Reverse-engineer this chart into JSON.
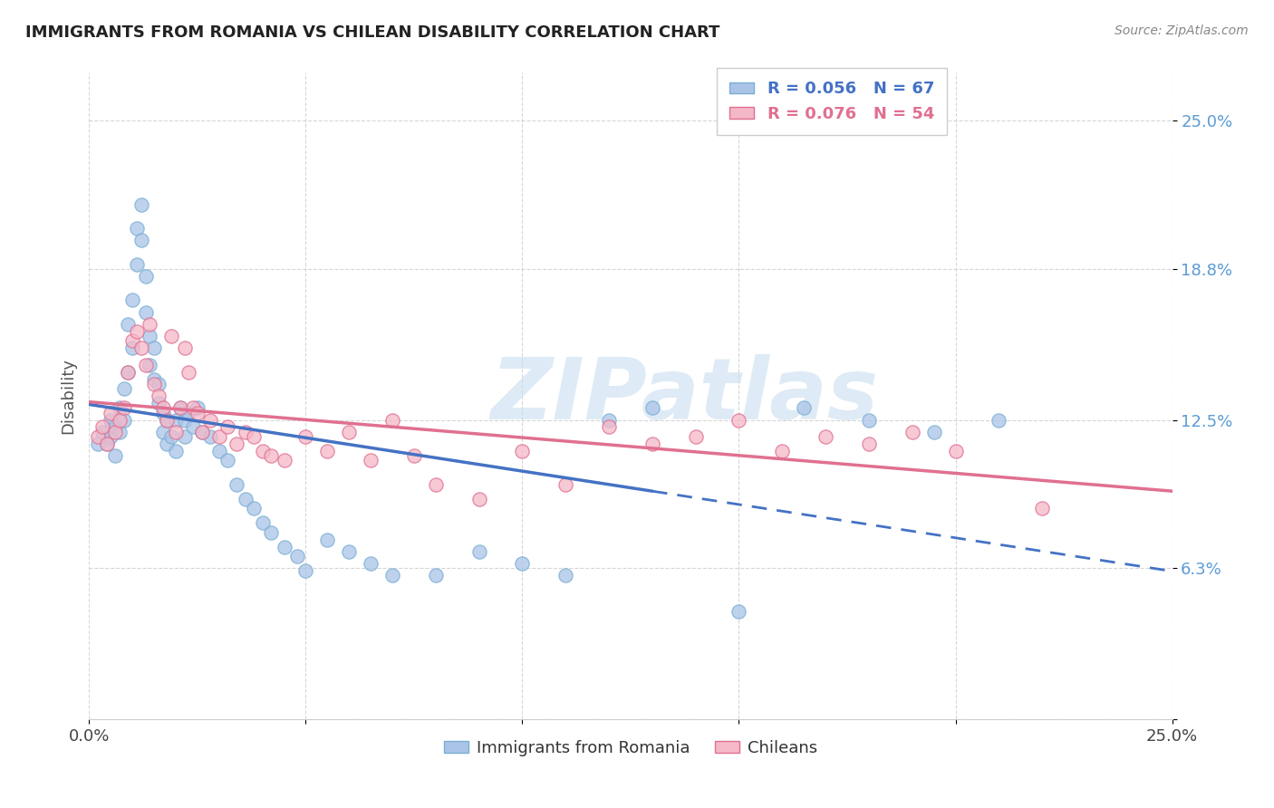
{
  "title": "IMMIGRANTS FROM ROMANIA VS CHILEAN DISABILITY CORRELATION CHART",
  "source": "Source: ZipAtlas.com",
  "ylabel": "Disability",
  "xlim": [
    0.0,
    0.25
  ],
  "ylim": [
    0.0,
    0.27
  ],
  "color_romania_fill": "#aac4e8",
  "color_romania_edge": "#7bafd4",
  "color_chileans_fill": "#f5b8c8",
  "color_chileans_edge": "#e07090",
  "color_romania_line": "#4472C4",
  "color_chileans_line": "#e07090",
  "watermark_color": "#c8dff0",
  "romania_scatter_x": [
    0.002,
    0.003,
    0.004,
    0.005,
    0.005,
    0.006,
    0.006,
    0.007,
    0.007,
    0.008,
    0.008,
    0.009,
    0.009,
    0.01,
    0.01,
    0.011,
    0.011,
    0.012,
    0.012,
    0.013,
    0.013,
    0.014,
    0.014,
    0.015,
    0.015,
    0.016,
    0.016,
    0.017,
    0.017,
    0.018,
    0.018,
    0.019,
    0.02,
    0.02,
    0.021,
    0.022,
    0.022,
    0.023,
    0.024,
    0.025,
    0.026,
    0.028,
    0.03,
    0.032,
    0.034,
    0.036,
    0.038,
    0.04,
    0.042,
    0.045,
    0.048,
    0.05,
    0.055,
    0.06,
    0.065,
    0.07,
    0.08,
    0.09,
    0.1,
    0.11,
    0.12,
    0.13,
    0.15,
    0.165,
    0.18,
    0.195,
    0.21
  ],
  "romania_scatter_y": [
    0.115,
    0.12,
    0.115,
    0.125,
    0.118,
    0.122,
    0.11,
    0.13,
    0.12,
    0.138,
    0.125,
    0.145,
    0.165,
    0.175,
    0.155,
    0.19,
    0.205,
    0.2,
    0.215,
    0.185,
    0.17,
    0.16,
    0.148,
    0.155,
    0.142,
    0.14,
    0.132,
    0.128,
    0.12,
    0.125,
    0.115,
    0.118,
    0.125,
    0.112,
    0.13,
    0.125,
    0.118,
    0.128,
    0.122,
    0.13,
    0.12,
    0.118,
    0.112,
    0.108,
    0.098,
    0.092,
    0.088,
    0.082,
    0.078,
    0.072,
    0.068,
    0.062,
    0.075,
    0.07,
    0.065,
    0.06,
    0.06,
    0.07,
    0.065,
    0.06,
    0.125,
    0.13,
    0.045,
    0.13,
    0.125,
    0.12,
    0.125
  ],
  "chilean_scatter_x": [
    0.002,
    0.003,
    0.004,
    0.005,
    0.006,
    0.007,
    0.008,
    0.009,
    0.01,
    0.011,
    0.012,
    0.013,
    0.014,
    0.015,
    0.016,
    0.017,
    0.018,
    0.019,
    0.02,
    0.021,
    0.022,
    0.023,
    0.024,
    0.025,
    0.026,
    0.028,
    0.03,
    0.032,
    0.034,
    0.036,
    0.038,
    0.04,
    0.042,
    0.045,
    0.05,
    0.055,
    0.06,
    0.065,
    0.07,
    0.075,
    0.08,
    0.09,
    0.1,
    0.11,
    0.12,
    0.13,
    0.14,
    0.15,
    0.16,
    0.17,
    0.18,
    0.19,
    0.2,
    0.22
  ],
  "chilean_scatter_y": [
    0.118,
    0.122,
    0.115,
    0.128,
    0.12,
    0.125,
    0.13,
    0.145,
    0.158,
    0.162,
    0.155,
    0.148,
    0.165,
    0.14,
    0.135,
    0.13,
    0.125,
    0.16,
    0.12,
    0.13,
    0.155,
    0.145,
    0.13,
    0.128,
    0.12,
    0.125,
    0.118,
    0.122,
    0.115,
    0.12,
    0.118,
    0.112,
    0.11,
    0.108,
    0.118,
    0.112,
    0.12,
    0.108,
    0.125,
    0.11,
    0.098,
    0.092,
    0.112,
    0.098,
    0.122,
    0.115,
    0.118,
    0.125,
    0.112,
    0.118,
    0.115,
    0.12,
    0.112,
    0.088
  ]
}
